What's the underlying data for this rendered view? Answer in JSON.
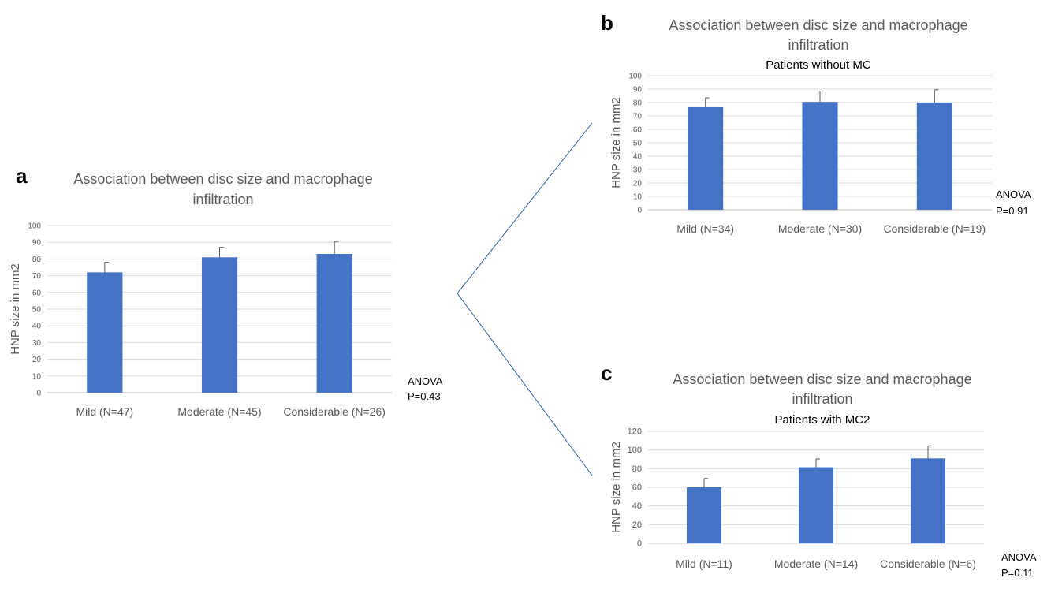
{
  "colors": {
    "bar": "#4472C4",
    "grid": "#d9d9d9",
    "title": "#595959",
    "text": "#595959",
    "dark": "#000000",
    "connector": "#2e5fa8"
  },
  "chart_data": [
    {
      "panel": "a",
      "type": "bar",
      "title": "Association between disc size and macrophage infiltration",
      "title_lines": [
        "Association between disc size and macrophage",
        "infiltration"
      ],
      "subtitle": "",
      "ylabel": "HNP size in mm2",
      "xlabel": "",
      "ylim": [
        0,
        100
      ],
      "yticks": [
        0,
        10,
        20,
        30,
        40,
        50,
        60,
        70,
        80,
        90,
        100
      ],
      "grid": true,
      "categories": [
        "Mild (N=47)",
        "Moderate (N=45)",
        "Considerable (N=26)"
      ],
      "values": [
        72,
        81,
        83
      ],
      "error_upper": [
        6,
        6,
        7.5
      ],
      "stat_label": "ANOVA",
      "stat_value": "P=0.43"
    },
    {
      "panel": "b",
      "type": "bar",
      "title": "Association between disc size and macrophage infiltration",
      "title_lines": [
        "Association between disc size and macrophage",
        "infiltration"
      ],
      "subtitle": "Patients without MC",
      "ylabel": "HNP size in mm2",
      "xlabel": "",
      "ylim": [
        0,
        100
      ],
      "yticks": [
        0,
        10,
        20,
        30,
        40,
        50,
        60,
        70,
        80,
        90,
        100
      ],
      "grid": true,
      "categories": [
        "Mild (N=34)",
        "Moderate (N=30)",
        "Considerable (N=19)"
      ],
      "values": [
        76.5,
        80.5,
        80
      ],
      "error_upper": [
        7,
        8,
        9.5
      ],
      "stat_label": "ANOVA",
      "stat_value": "P=0.91"
    },
    {
      "panel": "c",
      "type": "bar",
      "title": "Association between disc size and macrophage infiltration",
      "title_lines": [
        "Association between disc size and macrophage",
        "infiltration"
      ],
      "subtitle": "Patients with MC2",
      "ylabel": "HNP size in mm2",
      "xlabel": "",
      "ylim": [
        0,
        120
      ],
      "yticks": [
        0,
        20,
        40,
        60,
        80,
        100,
        120
      ],
      "grid": true,
      "categories": [
        "Mild (N=11)",
        "Moderate (N=14)",
        "Considerable (N=6)"
      ],
      "values": [
        60,
        81.5,
        91
      ],
      "error_upper": [
        9.5,
        9,
        13.5
      ],
      "stat_label": "ANOVA",
      "stat_value": "P=0.11"
    }
  ]
}
